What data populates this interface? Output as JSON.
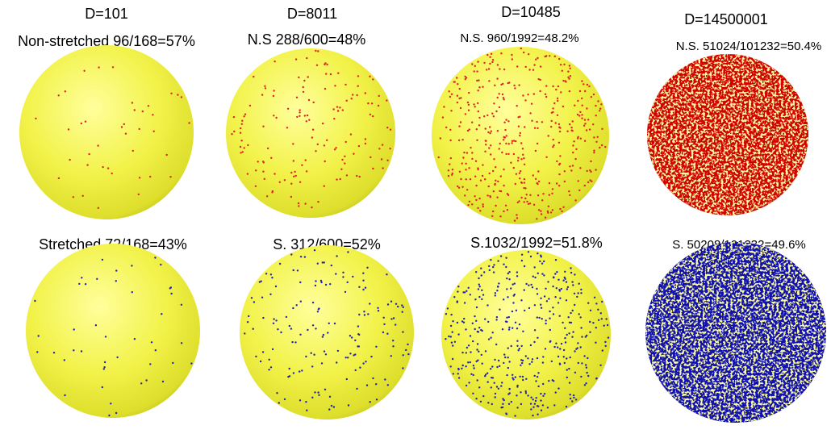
{
  "columns": [
    {
      "heading": "D=101",
      "top_caption": "Non-stretched 96/168=57%",
      "bottom_caption": "Stretched 72/168=43%"
    },
    {
      "heading": "D=8011",
      "top_caption": "N.S 288/600=48%",
      "bottom_caption": "S. 312/600=52%"
    },
    {
      "heading": "D=10485",
      "top_caption": "N.S. 960/1992=48.2%",
      "bottom_caption": "S.1032/1992=51.8%"
    },
    {
      "heading": "D=14500001",
      "top_caption": "N.S. 51024/101232=50.4%",
      "bottom_caption": "S. 50208/101232=49.6%"
    }
  ]
}
